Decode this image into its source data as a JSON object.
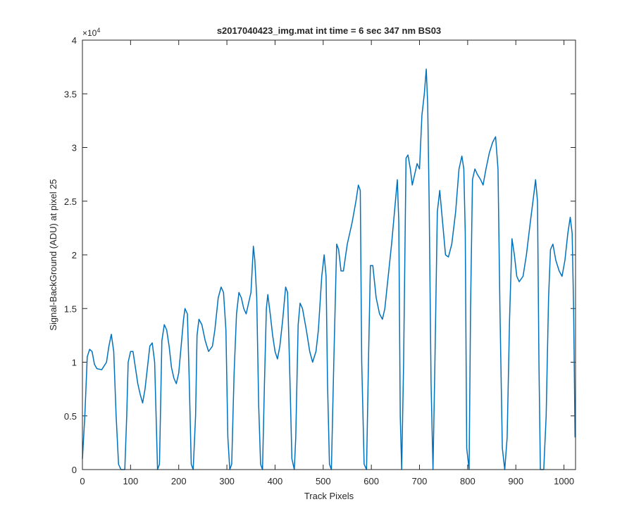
{
  "chart_data": {
    "type": "line",
    "title": "s2017040423_img.mat int time = 6 sec  347 nm BS03",
    "xlabel": "Track Pixels",
    "ylabel": "Signal-BackGround (ADU) at pixel 25",
    "y_exponent_base": "×10",
    "y_exponent_power": "4",
    "xlim": [
      0,
      1024
    ],
    "ylim": [
      0,
      40000
    ],
    "xticks": [
      0,
      100,
      200,
      300,
      400,
      500,
      600,
      700,
      800,
      900,
      1000
    ],
    "yticks": [
      0,
      {
        "value": 5000,
        "label": "0.5"
      },
      {
        "value": 10000,
        "label": "1"
      },
      {
        "value": 15000,
        "label": "1.5"
      },
      {
        "value": 20000,
        "label": "2"
      },
      {
        "value": 25000,
        "label": "2.5"
      },
      {
        "value": 30000,
        "label": "3"
      },
      {
        "value": 35000,
        "label": "3.5"
      },
      {
        "value": 40000,
        "label": "4"
      }
    ],
    "grid": false,
    "series": [
      {
        "color": "#0072bd",
        "x": [
          0,
          5,
          10,
          15,
          20,
          25,
          30,
          40,
          50,
          55,
          60,
          65,
          70,
          75,
          80,
          88,
          92,
          95,
          100,
          105,
          110,
          115,
          120,
          125,
          130,
          135,
          140,
          145,
          150,
          153,
          156,
          160,
          165,
          170,
          175,
          180,
          185,
          190,
          195,
          200,
          205,
          210,
          213,
          218,
          222,
          226,
          230,
          235,
          238,
          242,
          248,
          255,
          262,
          270,
          275,
          282,
          288,
          293,
          298,
          302,
          306,
          310,
          315,
          320,
          325,
          330,
          335,
          340,
          345,
          350,
          355,
          358,
          362,
          366,
          370,
          374,
          378,
          382,
          385,
          390,
          395,
          400,
          405,
          410,
          416,
          422,
          426,
          430,
          435,
          440,
          443,
          448,
          452,
          457,
          465,
          472,
          478,
          485,
          490,
          497,
          502,
          506,
          509,
          513,
          517,
          522,
          528,
          532,
          537,
          542,
          550,
          560,
          568,
          573,
          577,
          580,
          585,
          590,
          594,
          598,
          603,
          610,
          617,
          623,
          628,
          635,
          642,
          648,
          654,
          657,
          660,
          663,
          667,
          672,
          676,
          681,
          685,
          690,
          695,
          700,
          705,
          710,
          714,
          717,
          720,
          724,
          728,
          732,
          737,
          742,
          748,
          754,
          760,
          767,
          775,
          782,
          788,
          792,
          795,
          798,
          803,
          806,
          810,
          815,
          820,
          827,
          832,
          838,
          845,
          852,
          858,
          863,
          867,
          872,
          877,
          882,
          887,
          892,
          897,
          902,
          907,
          915,
          922,
          930,
          937,
          941,
          945,
          948,
          951,
          958,
          963,
          968,
          972,
          977,
          983,
          990,
          996,
          1002,
          1008,
          1013,
          1017,
          1020,
          1023
        ],
        "values": [
          1000,
          5000,
          10500,
          11200,
          11000,
          9800,
          9400,
          9300,
          10000,
          11500,
          12600,
          11000,
          5000,
          500,
          0,
          0,
          5000,
          10000,
          11000,
          11000,
          9500,
          8000,
          7000,
          6200,
          7500,
          9500,
          11500,
          11800,
          10000,
          5000,
          0,
          500,
          12000,
          13500,
          13000,
          11500,
          9500,
          8500,
          8000,
          9000,
          11500,
          14000,
          15000,
          14500,
          8000,
          500,
          0,
          5000,
          12500,
          14000,
          13500,
          12000,
          11000,
          11500,
          13000,
          16000,
          17000,
          16500,
          13000,
          3000,
          0,
          500,
          9000,
          14500,
          16500,
          16000,
          15000,
          14500,
          15500,
          16500,
          20800,
          19500,
          16000,
          6000,
          500,
          0,
          8000,
          15000,
          16300,
          14500,
          12500,
          11000,
          10300,
          11500,
          14000,
          17000,
          16500,
          10000,
          1000,
          0,
          3000,
          13500,
          15500,
          15000,
          13000,
          11000,
          10000,
          11000,
          13000,
          18000,
          20000,
          18000,
          8000,
          500,
          0,
          10000,
          21000,
          20500,
          18500,
          18500,
          21000,
          23000,
          25000,
          26500,
          26000,
          10000,
          500,
          0,
          10000,
          19000,
          19000,
          16000,
          14500,
          14000,
          15000,
          18000,
          21000,
          24000,
          27000,
          23000,
          5000,
          0,
          10000,
          29000,
          29300,
          28000,
          26500,
          27500,
          28500,
          28000,
          33000,
          35000,
          37300,
          34000,
          25000,
          8000,
          0,
          10000,
          24000,
          26000,
          23000,
          20000,
          19800,
          21000,
          24000,
          28000,
          29200,
          28000,
          22000,
          2000,
          0,
          15000,
          27000,
          28000,
          27500,
          27000,
          26500,
          28000,
          29500,
          30500,
          31000,
          28000,
          15000,
          2000,
          0,
          3000,
          14000,
          21500,
          20000,
          18000,
          17500,
          18000,
          20000,
          23000,
          25500,
          27000,
          25000,
          10000,
          0,
          0,
          5000,
          16000,
          20500,
          21000,
          19500,
          18500,
          18000,
          19500,
          22000,
          23500,
          22000,
          15000,
          3000
        ]
      }
    ]
  }
}
